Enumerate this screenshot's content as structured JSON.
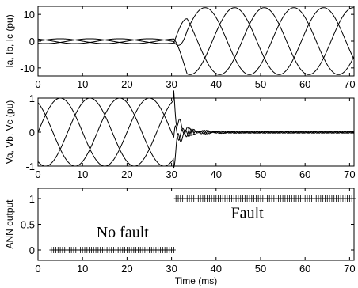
{
  "chart_data": [
    {
      "type": "line",
      "ylabel": "Ia, Ib, Ic (pu)",
      "xlim": [
        0,
        71
      ],
      "ylim": [
        -13,
        13
      ],
      "xticks": [
        0,
        10,
        20,
        30,
        40,
        50,
        60,
        70
      ],
      "yticks": [
        10,
        0,
        -10
      ],
      "x_ms": [
        0,
        71
      ],
      "grid": false,
      "description_of_series": "three-phase currents",
      "prefault": {
        "x": [
          0,
          30.5
        ],
        "amplitude": 0.9,
        "period_ms": 20
      },
      "fault": {
        "x": [
          30.5,
          71
        ],
        "amplitude": 12.5,
        "period_ms": 20
      },
      "series": [
        {
          "phase_deg": 0
        },
        {
          "phase_deg": -120
        },
        {
          "phase_deg": 120
        }
      ]
    },
    {
      "type": "line",
      "ylabel": "Va, Vb, Vc (pu)",
      "xlim": [
        0,
        71
      ],
      "ylim": [
        -1,
        1
      ],
      "xticks": [
        0,
        10,
        20,
        30,
        40,
        50,
        60,
        70
      ],
      "yticks": [
        1,
        0,
        -1
      ],
      "grid": false,
      "prefault": {
        "x": [
          0,
          30.5
        ],
        "amplitude": 1.0,
        "period_ms": 20
      },
      "fault": {
        "x": [
          30.5,
          71
        ],
        "amplitude": 0.03,
        "transient_amplitude": 0.3
      },
      "series": [
        {
          "phase_deg": 0
        },
        {
          "phase_deg": -120
        },
        {
          "phase_deg": 120
        }
      ]
    },
    {
      "type": "scatter",
      "ylabel": "ANN output",
      "xlabel": "Time (ms)",
      "xlim": [
        0,
        71
      ],
      "ylim": [
        -0.2,
        1.2
      ],
      "xticks": [
        0,
        10,
        20,
        30,
        40,
        50,
        60,
        70
      ],
      "yticks": [
        1,
        0.5,
        0
      ],
      "ytick_labels": [
        "1",
        "0.5",
        "0"
      ],
      "grid": false,
      "segments": [
        {
          "x_start": 3,
          "x_end": 30.5,
          "y": 0,
          "step_ms": 0.5
        },
        {
          "x_start": 31,
          "x_end": 71,
          "y": 1,
          "step_ms": 0.5
        }
      ],
      "annotations": [
        {
          "text": "No fault",
          "x": 19,
          "y": 0.25
        },
        {
          "text": "Fault",
          "x": 47,
          "y": 0.62
        }
      ]
    }
  ]
}
